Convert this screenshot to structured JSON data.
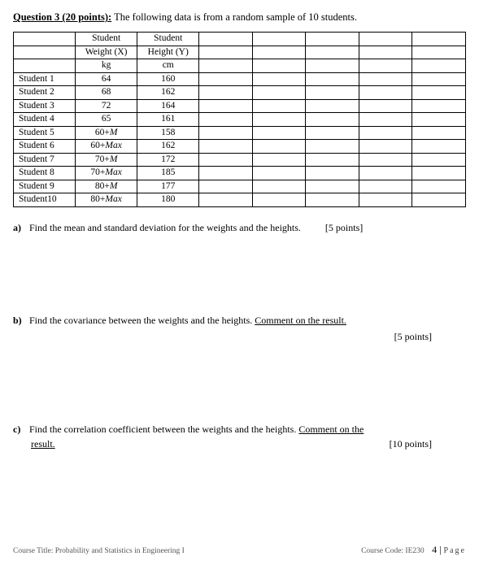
{
  "question": {
    "label": "Question 3 (20 points):",
    "intro": " The following data is from a random sample of 10 students."
  },
  "table": {
    "headers": {
      "col1_line1": "Student",
      "col1_line2": "Weight (X)",
      "col1_line3": "kg",
      "col2_line1": "Student",
      "col2_line2": "Height (Y)",
      "col2_line3": "cm"
    },
    "rows": [
      {
        "name": "Student 1",
        "weight": "64",
        "height": "160"
      },
      {
        "name": "Student 2",
        "weight": "68",
        "height": "162"
      },
      {
        "name": "Student 3",
        "weight": "72",
        "height": "164"
      },
      {
        "name": "Student 4",
        "weight": "65",
        "height": "161"
      },
      {
        "name": "Student 5",
        "weight": "60+M",
        "height": "158"
      },
      {
        "name": "Student 6",
        "weight": "60+Max",
        "height": "162"
      },
      {
        "name": "Student 7",
        "weight": "70+M",
        "height": "172"
      },
      {
        "name": "Student 8",
        "weight": "70+Max",
        "height": "185"
      },
      {
        "name": "Student 9",
        "weight": "80+M",
        "height": "177"
      },
      {
        "name": "Student10",
        "weight": "80+Max",
        "height": "180"
      }
    ]
  },
  "parts": {
    "a": {
      "letter": "a)",
      "text": "Find the mean and standard deviation for the weights and the heights.",
      "points": "[5 points]"
    },
    "b": {
      "letter": "b)",
      "text_before": "Find the covariance between the weights and the heights. ",
      "text_under": "Comment on the result.",
      "points": "[5 points]"
    },
    "c": {
      "letter": "c)",
      "text_before": "Find the correlation coefficient between the weights and the heights. ",
      "text_under1": "Comment on the",
      "text_under2": "result.",
      "points": "[10 points]"
    }
  },
  "footer": {
    "left": "Course Title: Probability and Statistics in Engineering I",
    "right_code": "Course Code: IE230",
    "page_num": "4",
    "page_sep": " | ",
    "page_text": "Page"
  }
}
